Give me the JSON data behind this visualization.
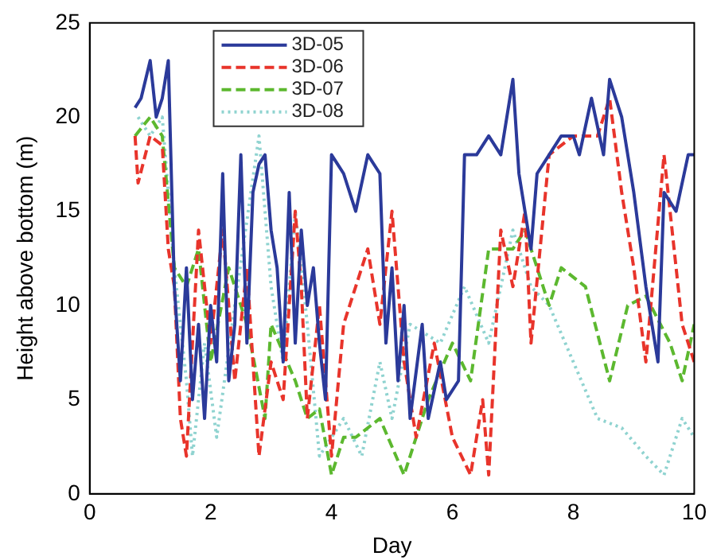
{
  "chart_data": {
    "type": "line",
    "xlabel": "Day",
    "ylabel": "Height above bottom (m)",
    "xlim": [
      0,
      10
    ],
    "xticks": [
      0,
      2,
      4,
      6,
      8,
      10
    ],
    "ylim": [
      0,
      25
    ],
    "yticks": [
      0,
      5,
      10,
      15,
      20,
      25
    ],
    "legend": "top",
    "grid": false,
    "marker": "none",
    "series": [
      {
        "name": "3D-05",
        "color": "#2b3a9a",
        "line_style": "solid",
        "x": [
          0.75,
          0.85,
          1.0,
          1.1,
          1.2,
          1.3,
          1.4,
          1.5,
          1.6,
          1.7,
          1.8,
          1.9,
          2.0,
          2.1,
          2.2,
          2.3,
          2.4,
          2.5,
          2.6,
          2.7,
          2.8,
          2.9,
          3.0,
          3.1,
          3.2,
          3.3,
          3.4,
          3.5,
          3.6,
          3.7,
          3.8,
          3.9,
          4.0,
          4.1,
          4.2,
          4.4,
          4.6,
          4.8,
          4.9,
          5.0,
          5.1,
          5.2,
          5.3,
          5.5,
          5.6,
          5.8,
          5.9,
          6.1,
          6.2,
          6.4,
          6.6,
          6.8,
          7.0,
          7.1,
          7.3,
          7.4,
          7.6,
          7.8,
          8.0,
          8.1,
          8.3,
          8.5,
          8.6,
          8.8,
          9.0,
          9.2,
          9.3,
          9.4,
          9.5,
          9.7,
          9.9,
          10.0
        ],
        "values": [
          20.5,
          21,
          23,
          20,
          21,
          23,
          11,
          6,
          12,
          5,
          9,
          4,
          10,
          7,
          17,
          6,
          9,
          18,
          8,
          16,
          17.5,
          18,
          14,
          12,
          7,
          16,
          8,
          14,
          10,
          12,
          8,
          5,
          18,
          17.5,
          17,
          15,
          18,
          17,
          8,
          12,
          6,
          10,
          4,
          9,
          4,
          7,
          5,
          6,
          18,
          18,
          19,
          18,
          22,
          17,
          13,
          17,
          18,
          19,
          19,
          18,
          21,
          18,
          22,
          20,
          16,
          11,
          9,
          7,
          16,
          15,
          18,
          18
        ]
      },
      {
        "name": "3D-06",
        "color": "#e8342b",
        "line_style": "dashed",
        "x": [
          0.75,
          0.8,
          1.0,
          1.2,
          1.3,
          1.4,
          1.5,
          1.6,
          1.8,
          2.0,
          2.2,
          2.4,
          2.6,
          2.8,
          3.0,
          3.2,
          3.4,
          3.5,
          3.6,
          3.8,
          4.0,
          4.2,
          4.4,
          4.6,
          4.8,
          5.0,
          5.2,
          5.4,
          5.7,
          6.0,
          6.3,
          6.5,
          6.6,
          6.8,
          7.0,
          7.2,
          7.3,
          7.6,
          8.0,
          8.4,
          8.6,
          8.8,
          9.0,
          9.2,
          9.5,
          9.8,
          10.0
        ],
        "values": [
          19,
          16.5,
          19,
          18.5,
          13,
          11,
          4,
          2,
          14,
          8,
          14,
          6,
          12,
          2,
          7,
          5,
          15,
          11,
          4,
          10,
          2,
          9,
          11,
          13,
          9,
          15,
          7,
          3,
          8,
          3,
          1,
          5,
          1,
          14,
          11,
          15,
          8,
          18,
          19,
          19,
          21,
          16,
          12,
          7,
          18,
          9,
          7
        ]
      },
      {
        "name": "3D-07",
        "color": "#5cb82f",
        "line_style": "dashed",
        "x": [
          0.75,
          1.0,
          1.2,
          1.4,
          1.6,
          1.8,
          2.0,
          2.3,
          2.6,
          2.9,
          3.0,
          3.4,
          3.6,
          3.8,
          4.0,
          4.2,
          4.4,
          4.8,
          5.2,
          5.6,
          6.0,
          6.3,
          6.6,
          7.0,
          7.2,
          7.6,
          7.8,
          8.2,
          8.6,
          8.9,
          9.2,
          9.6,
          9.8,
          10.0
        ],
        "values": [
          19,
          20,
          19,
          12,
          11,
          13,
          7,
          12,
          9,
          4,
          9,
          6,
          4,
          4.5,
          1,
          3,
          3,
          4,
          1,
          5,
          8,
          6,
          13,
          13,
          14,
          10,
          12,
          11,
          6,
          10,
          10.5,
          8,
          6,
          9
        ]
      },
      {
        "name": "3D-08",
        "color": "#8fd3d0",
        "line_style": "dotted",
        "x": [
          0.8,
          1.0,
          1.2,
          1.4,
          1.6,
          1.7,
          1.9,
          2.1,
          2.4,
          2.8,
          3.0,
          3.2,
          3.4,
          3.6,
          3.8,
          4.2,
          4.5,
          4.8,
          5.0,
          5.3,
          5.8,
          6.2,
          6.6,
          7.0,
          7.3,
          7.6,
          8.0,
          8.4,
          8.8,
          9.2,
          9.5,
          9.8,
          10.0
        ],
        "values": [
          20,
          19,
          20,
          12,
          6,
          2,
          8,
          3,
          10,
          19,
          11,
          7,
          15,
          9,
          2,
          4,
          2,
          7,
          4,
          9,
          8,
          11,
          8,
          14,
          11,
          10,
          7,
          4,
          3.5,
          2,
          1,
          4,
          3
        ]
      }
    ]
  }
}
